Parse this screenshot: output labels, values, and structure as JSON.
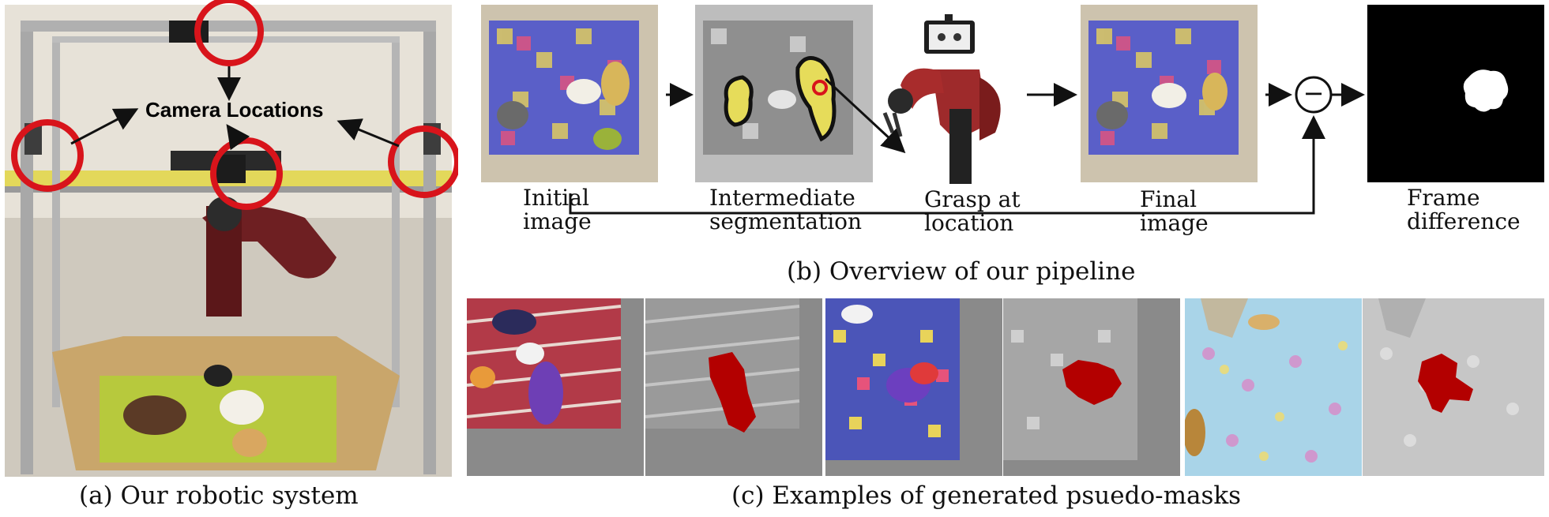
{
  "panel_a": {
    "camera_label": "Camera Locations",
    "caption": "(a) Our robotic system"
  },
  "panel_b": {
    "caption": "(b) Overview of our pipeline",
    "steps": [
      {
        "label": "Initial\nimage"
      },
      {
        "label": "Intermediate\nsegmentation"
      },
      {
        "label": "Grasp at\nlocation"
      },
      {
        "label": "Final\nimage"
      },
      {
        "label": "Frame\ndifference"
      }
    ],
    "operator_symbol": "−"
  },
  "panel_c": {
    "caption": "(c) Examples of generated psuedo-masks"
  },
  "colors": {
    "mask_red": "#b30000",
    "camera_circle": "#d8141b",
    "highlight_yellow": "#e6dc5a"
  }
}
